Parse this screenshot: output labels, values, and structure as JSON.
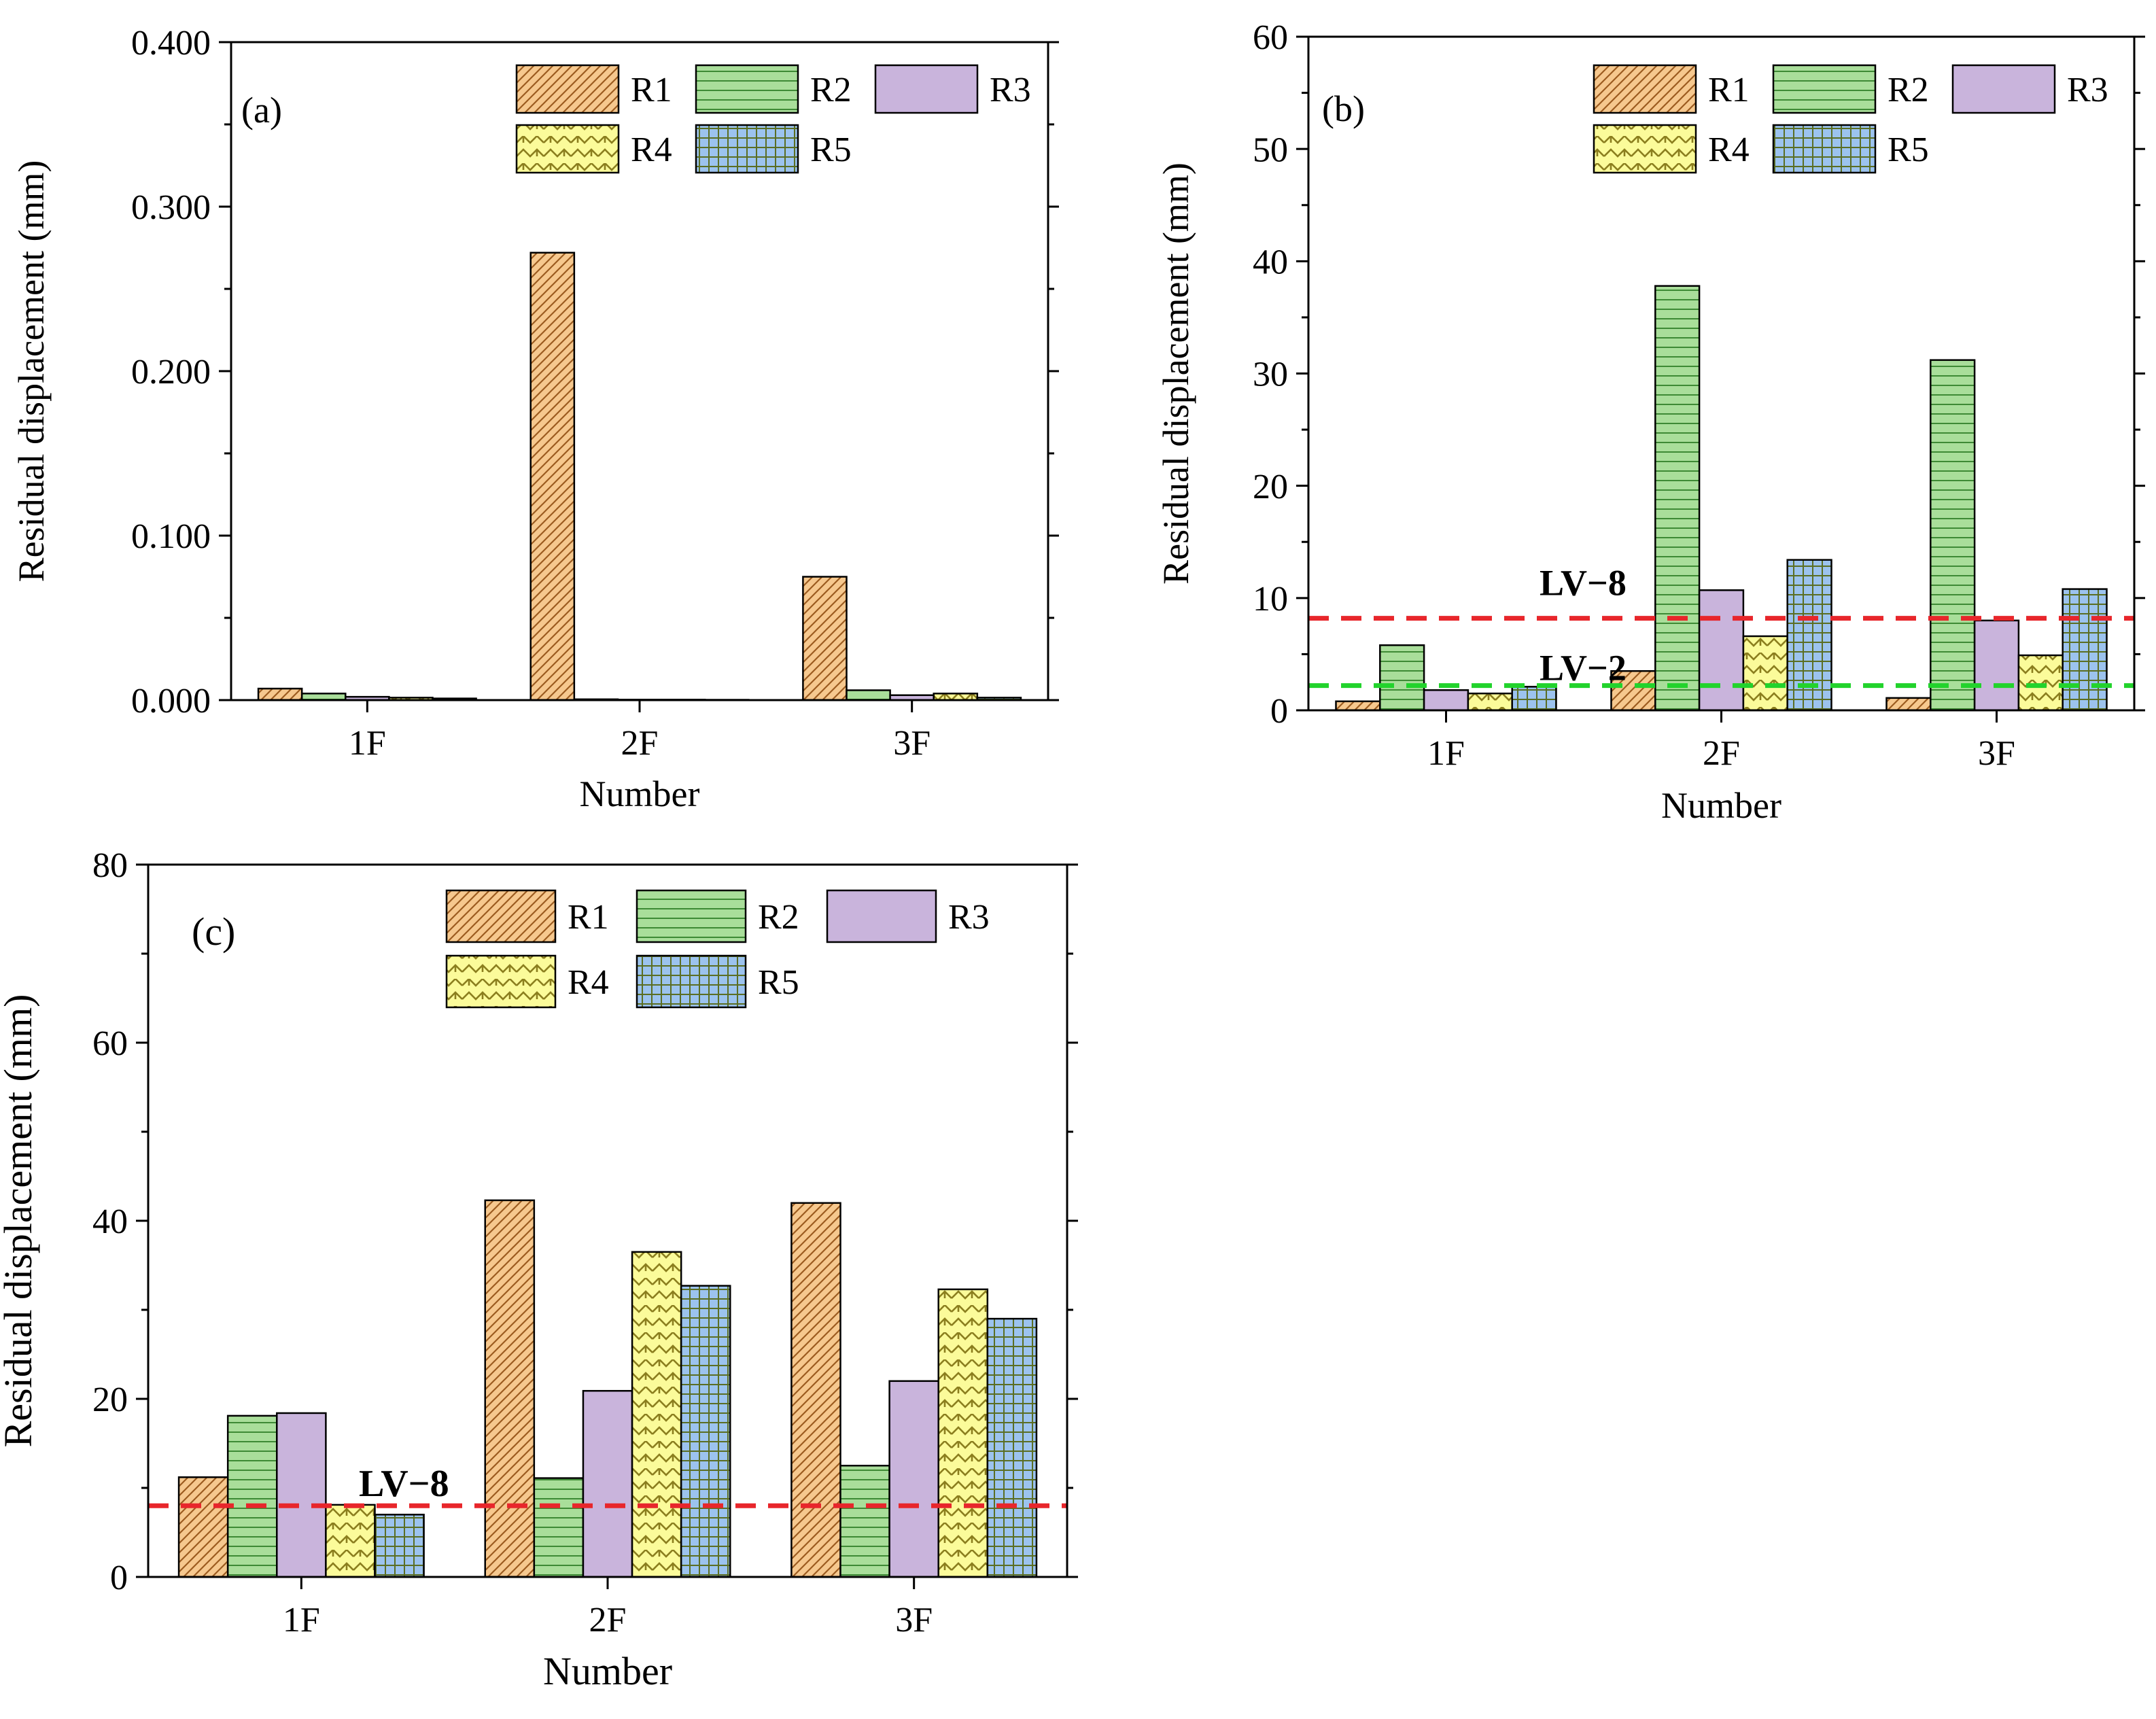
{
  "legend_series": [
    "R1",
    "R2",
    "R3",
    "R4",
    "R5"
  ],
  "series_style": [
    {
      "name": "R1",
      "fill": "#F6C88E",
      "line": "#9C5B1F",
      "pattern": "diagonal-hatch"
    },
    {
      "name": "R2",
      "fill": "#A9DE9A",
      "line": "#3E8A35",
      "pattern": "horizontal-lines"
    },
    {
      "name": "R3",
      "fill": "#C9B4DC",
      "line": "#C9B4DC",
      "pattern": "solid"
    },
    {
      "name": "R4",
      "fill": "#FBFB9A",
      "line": "#8B7E1E",
      "pattern": "zigzag"
    },
    {
      "name": "R5",
      "fill": "#9CC3EE",
      "line": "#5B6E23",
      "pattern": "grid"
    }
  ],
  "chart_data": [
    {
      "type": "bar",
      "panel_label": "(a)",
      "categories": [
        "1F",
        "2F",
        "3F"
      ],
      "xlabel": "Number",
      "ylabel": "Residual displacement (mm)",
      "ylim": [
        0,
        0.4
      ],
      "yticks": [
        "0.000",
        "0.100",
        "0.200",
        "0.300",
        "0.400"
      ],
      "series": [
        {
          "name": "R1",
          "values": [
            0.007,
            0.272,
            0.075
          ]
        },
        {
          "name": "R2",
          "values": [
            0.004,
            0.0005,
            0.006
          ]
        },
        {
          "name": "R3",
          "values": [
            0.002,
            0.0003,
            0.003
          ]
        },
        {
          "name": "R4",
          "values": [
            0.0015,
            0.0003,
            0.004
          ]
        },
        {
          "name": "R5",
          "values": [
            0.001,
            0.0002,
            0.0015
          ]
        }
      ],
      "reference_lines": [],
      "legend_position": "top-right"
    },
    {
      "type": "bar",
      "panel_label": "(b)",
      "categories": [
        "1F",
        "2F",
        "3F"
      ],
      "xlabel": "Number",
      "ylabel": "Residual displacement (mm)",
      "ylim": [
        0,
        60
      ],
      "yticks": [
        "0",
        "10",
        "20",
        "30",
        "40",
        "50",
        "60"
      ],
      "series": [
        {
          "name": "R1",
          "values": [
            0.8,
            3.5,
            1.1
          ]
        },
        {
          "name": "R2",
          "values": [
            5.8,
            37.8,
            31.2
          ]
        },
        {
          "name": "R3",
          "values": [
            1.8,
            10.7,
            8.0
          ]
        },
        {
          "name": "R4",
          "values": [
            1.5,
            6.6,
            4.9
          ]
        },
        {
          "name": "R5",
          "values": [
            2.1,
            13.4,
            10.8
          ]
        }
      ],
      "reference_lines": [
        {
          "label": "LV−8",
          "value": 8.2,
          "color": "#E8262B"
        },
        {
          "label": "LV−2",
          "value": 2.2,
          "color": "#22D32C"
        }
      ],
      "legend_position": "top-right"
    },
    {
      "type": "bar",
      "panel_label": "(c)",
      "categories": [
        "1F",
        "2F",
        "3F"
      ],
      "xlabel": "Number",
      "ylabel": "Residual displacement (mm)",
      "ylim": [
        0,
        80
      ],
      "yticks": [
        "0",
        "20",
        "40",
        "60",
        "80"
      ],
      "series": [
        {
          "name": "R1",
          "values": [
            11.2,
            42.3,
            42.0
          ]
        },
        {
          "name": "R2",
          "values": [
            18.1,
            11.1,
            12.5
          ]
        },
        {
          "name": "R3",
          "values": [
            18.4,
            20.9,
            22.0
          ]
        },
        {
          "name": "R4",
          "values": [
            8.1,
            36.5,
            32.3
          ]
        },
        {
          "name": "R5",
          "values": [
            7.0,
            32.7,
            29.0
          ]
        }
      ],
      "reference_lines": [
        {
          "label": "LV−8",
          "value": 8.0,
          "color": "#E8262B"
        }
      ],
      "legend_position": "top-right"
    }
  ]
}
